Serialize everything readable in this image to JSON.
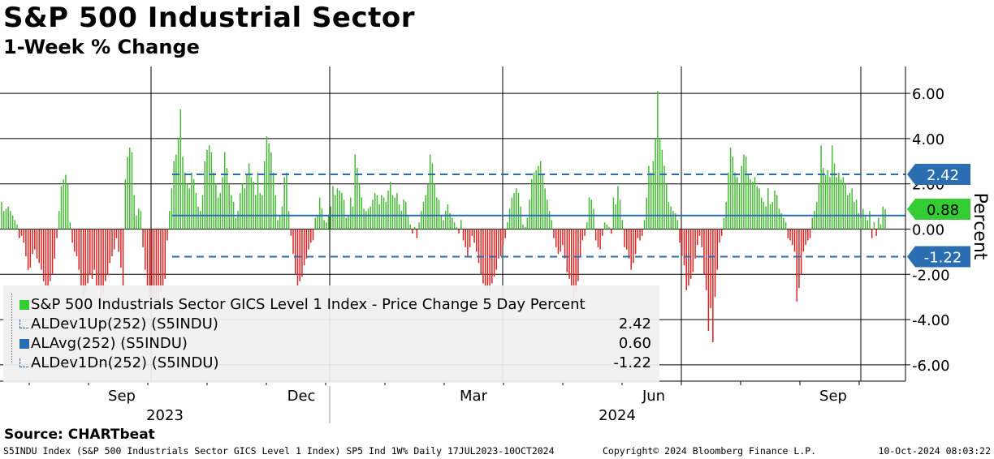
{
  "header": {
    "title": "S&P 500 Industrial Sector",
    "subtitle": "1-Week % Change"
  },
  "source": "Source: CHARTbeat",
  "footer": {
    "left": "S5INDU Index (S&P 500 Industrials Sector GICS Level 1 Index) SP5 Ind 1W% Daily 17JUL2023-10OCT2024",
    "center": "Copyright© 2024 Bloomberg Finance L.P.",
    "right": "10-Oct-2024 08:03:22"
  },
  "colors": {
    "positive_bar": "#44bb33",
    "negative_bar": "#dd2222",
    "avg_line": "#2a6db0",
    "dev_line": "#2a6db0",
    "badge_dev": "#2a6db0",
    "badge_last": "#33cc33"
  },
  "legend": {
    "items": [
      {
        "label": "S&P 500 Industrials Sector GICS Level 1 Index - Price Change 5 Day Percent",
        "value": "",
        "icon": "green-square-icon",
        "color": "#33cc33"
      },
      {
        "label": "ALDev1Up(252) (S5INDU)",
        "value": "2.42",
        "icon": "dashed-line-icon",
        "color": "#2a6db0"
      },
      {
        "label": "ALAvg(252) (S5INDU)",
        "value": "0.60",
        "icon": "blue-square-icon",
        "color": "#2a6db0"
      },
      {
        "label": "ALDev1Dn(252) (S5INDU)",
        "value": "-1.22",
        "icon": "dashed-line-icon",
        "color": "#2a6db0"
      }
    ]
  },
  "badges": {
    "dev_up": "2.42",
    "last": "0.88",
    "dev_down": "-1.22"
  },
  "chart_data": {
    "type": "bar",
    "ylabel": "Percent",
    "ylim": [
      -7,
      7.2
    ],
    "yticks": [
      "6.00",
      "4.00",
      "2.00",
      "0.00",
      "-2.00",
      "-4.00",
      "-6.00"
    ],
    "month_labels": [
      "Sep",
      "Dec",
      "Mar",
      "Jun",
      "Sep"
    ],
    "year_labels": [
      "2023",
      "2024"
    ],
    "grid": "vertical quarter lines, horizontal at 2-point steps",
    "reference_lines": {
      "dev_up": 2.42,
      "avg": 0.6,
      "dev_down": -1.22
    },
    "series": [
      {
        "name": "S&P 500 Industrials Sector GICS Level 1 Index - Price Change 5 Day Percent",
        "values": [
          1.2,
          0.8,
          0.9,
          1.0,
          0.8,
          0.6,
          0.4,
          0.2,
          -0.4,
          -0.3,
          -0.6,
          -1.2,
          -1.8,
          -1.7,
          -1.1,
          -0.9,
          -1.3,
          -1.5,
          -1.8,
          -2.3,
          -2.5,
          -2.6,
          -2.3,
          -2.0,
          -1.3,
          -0.4,
          0.8,
          1.9,
          2.2,
          2.4,
          2.0,
          0.3,
          -0.6,
          -1.0,
          -1.2,
          -1.8,
          -2.5,
          -3.0,
          -2.8,
          -2.4,
          -2.0,
          -2.2,
          -1.8,
          -2.5,
          -2.6,
          -3.1,
          -2.8,
          -2.3,
          -2.0,
          -1.5,
          -1.2,
          -0.9,
          -0.4,
          -1.0,
          -1.7,
          -2.5,
          2.2,
          3.2,
          3.6,
          3.4,
          1.5,
          0.6,
          0.9,
          0.8,
          -0.8,
          -1.8,
          -2.5,
          -3.0,
          -3.2,
          -3.4,
          -3.6,
          -3.2,
          -2.8,
          -2.5,
          -2.2,
          -0.5,
          0.8,
          1.8,
          3.0,
          3.3,
          4.0,
          5.3,
          3.2,
          2.5,
          2.0,
          1.8,
          2.5,
          2.2,
          1.6,
          1.0,
          0.8,
          1.5,
          3.0,
          3.5,
          3.7,
          3.4,
          2.5,
          2.0,
          1.4,
          1.6,
          2.3,
          3.4,
          2.7,
          2.0,
          1.5,
          1.2,
          0.5,
          0.8,
          1.6,
          2.0,
          1.8,
          2.4,
          2.9,
          2.3,
          2.1,
          1.5,
          2.5,
          1.6,
          1.5,
          3.0,
          4.1,
          3.8,
          3.4,
          2.5,
          1.5,
          0.4,
          0.6,
          1.0,
          2.3,
          2.5,
          0.8,
          -0.3,
          -1.1,
          -2.0,
          -2.5,
          -2.3,
          -2.1,
          -1.6,
          -1.3,
          -0.9,
          -0.6,
          -0.5,
          0.5,
          0.6,
          1.4,
          0.9,
          0.4,
          0.3,
          0.6,
          1.0,
          1.9,
          1.5,
          1.8,
          1.7,
          1.6,
          1.3,
          0.5,
          0.6,
          1.4,
          1.0,
          3.3,
          2.7,
          2.0,
          1.4,
          0.9,
          0.8,
          0.9,
          1.0,
          1.3,
          1.6,
          1.5,
          1.1,
          1.5,
          1.4,
          1.2,
          1.7,
          2.1,
          1.5,
          1.4,
          1.6,
          1.1,
          0.8,
          1.3,
          1.2,
          0.6,
          0.2,
          -0.2,
          0.1,
          -0.4,
          0.3,
          0.8,
          1.2,
          1.5,
          2.0,
          3.3,
          2.9,
          2.0,
          1.4,
          1.3,
          0.6,
          0.4,
          0.8,
          1.1,
          0.7,
          0.5,
          0.3,
          0.1,
          -0.2,
          0.4,
          -0.5,
          -0.8,
          -1.2,
          -0.8,
          -0.3,
          -0.6,
          -1.0,
          -1.5,
          -2.0,
          -2.4,
          -2.6,
          -2.7,
          -2.8,
          -2.4,
          -2.1,
          -1.8,
          -1.3,
          -1.2,
          -0.7,
          -0.4,
          0.3,
          0.9,
          1.4,
          1.6,
          1.8,
          1.6,
          1.0,
          0.2,
          0.1,
          0.5,
          1.3,
          2.2,
          2.5,
          2.6,
          2.8,
          3.0,
          2.4,
          1.8,
          1.3,
          0.8,
          0.4,
          -0.4,
          -0.8,
          -1.1,
          -1.0,
          -0.7,
          -1.3,
          -1.9,
          -2.2,
          -2.5,
          -3.1,
          -2.8,
          -2.3,
          -1.2,
          -0.5,
          -0.3,
          0.3,
          1.4,
          1.3,
          0.9,
          -0.5,
          -0.8,
          -0.9,
          -0.3,
          0.3,
          0.2,
          0.1,
          -0.2,
          1.4,
          1.1,
          1.9,
          1.3,
          0.4,
          -0.8,
          -0.9,
          -1.3,
          -1.8,
          -1.5,
          -1.1,
          -0.4,
          -0.5,
          -0.3,
          0.4,
          1.4,
          2.8,
          2.5,
          3.0,
          4.0,
          6.1,
          4.0,
          3.5,
          2.8,
          2.0,
          1.2,
          1.0,
          0.8,
          0.7,
          0.4,
          -0.6,
          -1.2,
          -1.6,
          -2.7,
          -2.5,
          -2.2,
          -1.9,
          -1.3,
          -0.7,
          -0.3,
          -0.8,
          -2.0,
          -2.7,
          -4.5,
          -3.5,
          -5.0,
          -3.0,
          -1.8,
          -0.6,
          -0.3,
          0.5,
          1.2,
          2.5,
          3.6,
          3.2,
          2.5,
          2.3,
          2.0,
          2.8,
          3.3,
          3.2,
          2.4,
          2.2,
          2.1,
          2.3,
          1.9,
          1.8,
          1.4,
          1.2,
          1.0,
          1.8,
          1.1,
          1.2,
          1.7,
          1.5,
          0.9,
          0.7,
          0.5,
          0.3,
          -0.4,
          -0.5,
          -0.7,
          -1.0,
          -3.2,
          -2.6,
          -2.0,
          -1.0,
          -0.7,
          -0.5,
          -0.4,
          0.5,
          0.8,
          1.2,
          2.0,
          3.7,
          2.7,
          2.4,
          2.6,
          2.3,
          3.7,
          2.9,
          2.3,
          2.5,
          2.2,
          2.3,
          2.0,
          1.5,
          1.6,
          1.8,
          1.2,
          1.3,
          0.7,
          0.5,
          0.9,
          0.6,
          0.4,
          0.8,
          -0.4,
          0.3,
          -0.3,
          0.5,
          0.2,
          1.0,
          0.88
        ]
      }
    ]
  }
}
